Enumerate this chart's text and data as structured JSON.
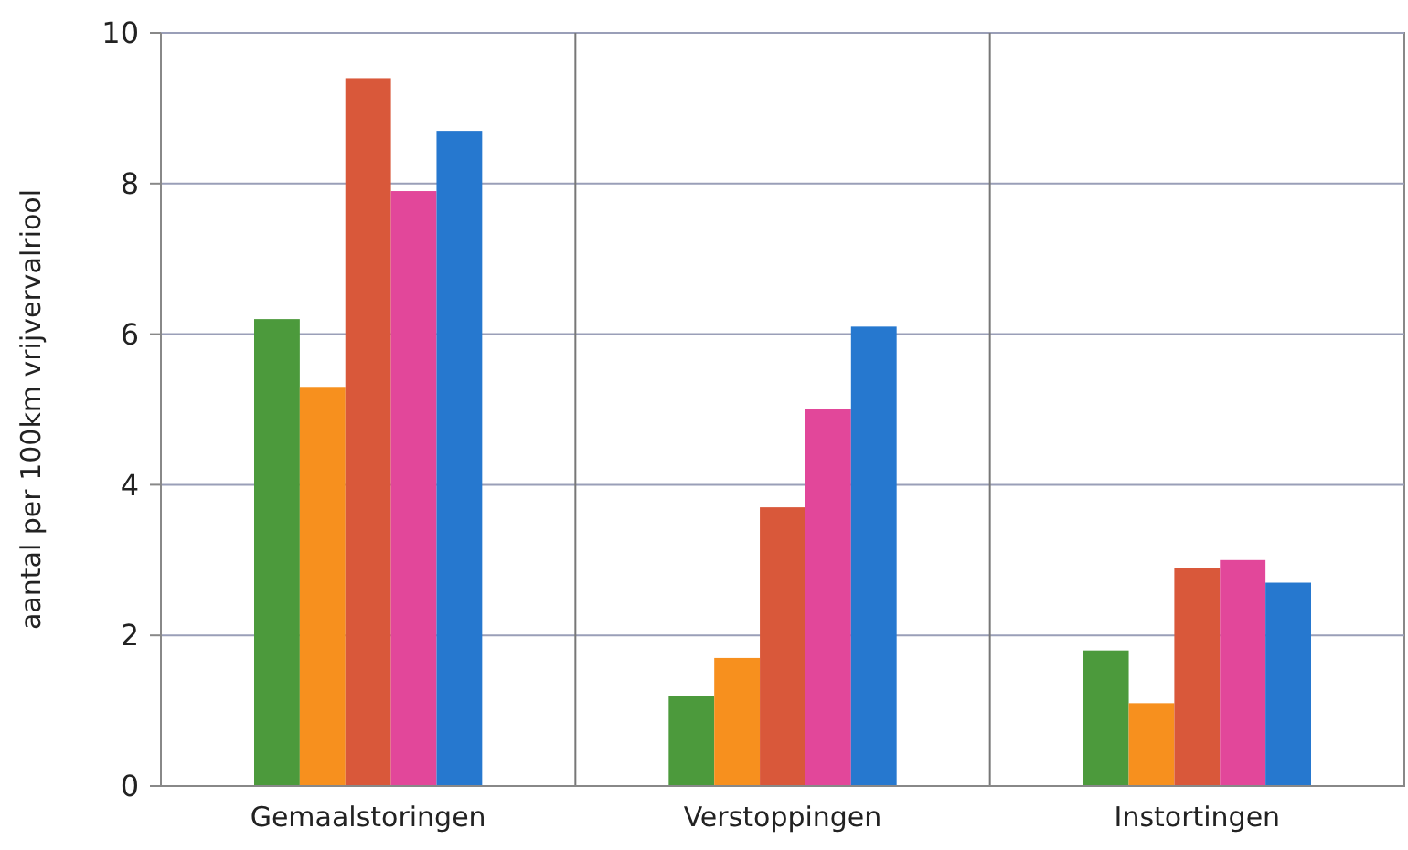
{
  "chart_data": {
    "type": "bar",
    "ylabel": "aantal per 100km vrijvervalriool",
    "categories": [
      "Gemaalstoringen",
      "Verstoppingen",
      "Instortingen"
    ],
    "series": [
      {
        "color": "#4c9a3c",
        "values": [
          6.2,
          1.2,
          1.8
        ]
      },
      {
        "color": "#f7901e",
        "values": [
          5.3,
          1.7,
          1.1
        ]
      },
      {
        "color": "#d9583a",
        "values": [
          9.4,
          3.7,
          2.9
        ]
      },
      {
        "color": "#e2479a",
        "values": [
          7.9,
          5.0,
          3.0
        ]
      },
      {
        "color": "#2678cf",
        "values": [
          8.7,
          6.1,
          2.7
        ]
      }
    ],
    "ylim": [
      0,
      10
    ],
    "yticks": [
      0,
      2,
      4,
      6,
      8,
      10
    ],
    "grid": true
  }
}
